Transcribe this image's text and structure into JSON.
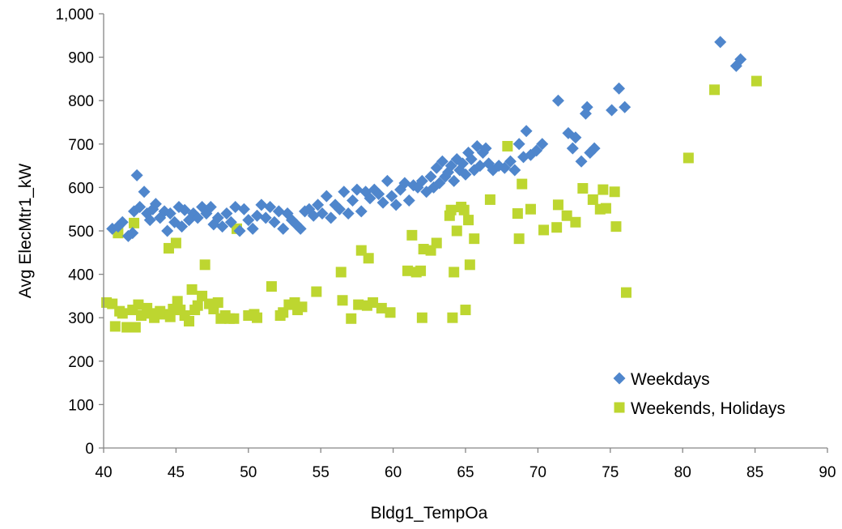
{
  "chart_data": {
    "type": "scatter",
    "title": "",
    "xlabel": "Bldg1_TempOa",
    "ylabel": "Avg ElecMtr1_kW",
    "xlim": [
      40,
      90
    ],
    "ylim": [
      0,
      1000
    ],
    "x_ticks": [
      "40",
      "45",
      "50",
      "55",
      "60",
      "65",
      "70",
      "75",
      "80",
      "85",
      "90"
    ],
    "y_ticks": [
      "0",
      "100",
      "200",
      "300",
      "400",
      "500",
      "600",
      "700",
      "800",
      "900",
      "1,000"
    ],
    "grid": false,
    "legend_position": "bottom-right",
    "series": [
      {
        "name": "Weekdays",
        "marker": "diamond",
        "color": "#4F86CC",
        "points": [
          [
            40.6,
            505
          ],
          [
            41.0,
            510
          ],
          [
            41.3,
            520
          ],
          [
            41.7,
            488
          ],
          [
            42.0,
            495
          ],
          [
            42.1,
            545
          ],
          [
            42.3,
            628
          ],
          [
            42.5,
            555
          ],
          [
            42.8,
            590
          ],
          [
            43.0,
            540
          ],
          [
            43.2,
            525
          ],
          [
            43.4,
            550
          ],
          [
            43.6,
            562
          ],
          [
            43.9,
            530
          ],
          [
            44.2,
            545
          ],
          [
            44.4,
            500
          ],
          [
            44.6,
            540
          ],
          [
            44.9,
            520
          ],
          [
            45.2,
            555
          ],
          [
            45.4,
            510
          ],
          [
            45.6,
            548
          ],
          [
            45.9,
            525
          ],
          [
            46.2,
            540
          ],
          [
            46.5,
            530
          ],
          [
            46.8,
            555
          ],
          [
            47.1,
            540
          ],
          [
            47.4,
            555
          ],
          [
            47.6,
            515
          ],
          [
            47.9,
            530
          ],
          [
            48.2,
            510
          ],
          [
            48.5,
            540
          ],
          [
            48.8,
            520
          ],
          [
            49.1,
            555
          ],
          [
            49.4,
            500
          ],
          [
            49.7,
            550
          ],
          [
            50.0,
            525
          ],
          [
            50.3,
            505
          ],
          [
            50.6,
            535
          ],
          [
            50.9,
            560
          ],
          [
            51.2,
            530
          ],
          [
            51.5,
            555
          ],
          [
            51.8,
            520
          ],
          [
            52.1,
            545
          ],
          [
            52.4,
            505
          ],
          [
            52.7,
            540
          ],
          [
            53.0,
            525
          ],
          [
            53.3,
            515
          ],
          [
            53.6,
            505
          ],
          [
            53.9,
            545
          ],
          [
            54.2,
            550
          ],
          [
            54.5,
            535
          ],
          [
            54.8,
            560
          ],
          [
            55.1,
            540
          ],
          [
            55.4,
            580
          ],
          [
            55.7,
            530
          ],
          [
            56.0,
            560
          ],
          [
            56.3,
            550
          ],
          [
            56.6,
            590
          ],
          [
            56.9,
            540
          ],
          [
            57.2,
            570
          ],
          [
            57.5,
            595
          ],
          [
            57.8,
            545
          ],
          [
            58.1,
            590
          ],
          [
            58.4,
            575
          ],
          [
            58.7,
            595
          ],
          [
            59.0,
            585
          ],
          [
            59.3,
            565
          ],
          [
            59.6,
            615
          ],
          [
            59.9,
            580
          ],
          [
            60.2,
            560
          ],
          [
            60.5,
            595
          ],
          [
            60.8,
            610
          ],
          [
            61.1,
            570
          ],
          [
            61.4,
            605
          ],
          [
            61.7,
            600
          ],
          [
            62.0,
            615
          ],
          [
            62.3,
            590
          ],
          [
            62.6,
            625
          ],
          [
            62.8,
            600
          ],
          [
            63.0,
            645
          ],
          [
            63.2,
            610
          ],
          [
            63.4,
            660
          ],
          [
            63.6,
            625
          ],
          [
            63.8,
            635
          ],
          [
            64.0,
            650
          ],
          [
            64.2,
            615
          ],
          [
            64.4,
            665
          ],
          [
            64.6,
            640
          ],
          [
            64.8,
            655
          ],
          [
            65.0,
            630
          ],
          [
            65.2,
            680
          ],
          [
            65.4,
            665
          ],
          [
            65.6,
            640
          ],
          [
            65.8,
            695
          ],
          [
            66.0,
            650
          ],
          [
            66.2,
            680
          ],
          [
            66.4,
            690
          ],
          [
            66.6,
            655
          ],
          [
            66.9,
            640
          ],
          [
            67.3,
            650
          ],
          [
            67.7,
            645
          ],
          [
            68.1,
            660
          ],
          [
            68.4,
            640
          ],
          [
            68.7,
            700
          ],
          [
            69.0,
            670
          ],
          [
            69.2,
            730
          ],
          [
            69.5,
            675
          ],
          [
            69.9,
            685
          ],
          [
            70.3,
            700
          ],
          [
            71.4,
            800
          ],
          [
            72.1,
            725
          ],
          [
            72.4,
            690
          ],
          [
            72.6,
            715
          ],
          [
            73.0,
            660
          ],
          [
            73.3,
            770
          ],
          [
            73.4,
            785
          ],
          [
            73.6,
            680
          ],
          [
            73.9,
            690
          ],
          [
            75.1,
            778
          ],
          [
            75.6,
            828
          ],
          [
            76.0,
            785
          ],
          [
            82.6,
            935
          ],
          [
            83.7,
            880
          ],
          [
            84.0,
            895
          ]
        ]
      },
      {
        "name": "Weekends, Holidays",
        "marker": "square",
        "color": "#BDD630",
        "points": [
          [
            40.2,
            335
          ],
          [
            40.6,
            332
          ],
          [
            40.8,
            280
          ],
          [
            41.0,
            495
          ],
          [
            41.1,
            315
          ],
          [
            41.3,
            310
          ],
          [
            41.6,
            278
          ],
          [
            42.0,
            318
          ],
          [
            42.1,
            518
          ],
          [
            42.2,
            278
          ],
          [
            42.4,
            330
          ],
          [
            42.6,
            305
          ],
          [
            43.0,
            322
          ],
          [
            43.3,
            310
          ],
          [
            43.5,
            300
          ],
          [
            43.9,
            315
          ],
          [
            44.2,
            308
          ],
          [
            44.5,
            460
          ],
          [
            44.6,
            302
          ],
          [
            44.8,
            320
          ],
          [
            45.0,
            472
          ],
          [
            45.1,
            338
          ],
          [
            45.3,
            318
          ],
          [
            45.6,
            305
          ],
          [
            45.9,
            292
          ],
          [
            46.1,
            365
          ],
          [
            46.3,
            318
          ],
          [
            46.5,
            328
          ],
          [
            46.8,
            350
          ],
          [
            47.0,
            422
          ],
          [
            47.3,
            332
          ],
          [
            47.6,
            320
          ],
          [
            47.9,
            335
          ],
          [
            48.1,
            298
          ],
          [
            48.4,
            305
          ],
          [
            48.7,
            298
          ],
          [
            49.0,
            298
          ],
          [
            49.2,
            505
          ],
          [
            50.0,
            305
          ],
          [
            50.4,
            308
          ],
          [
            50.6,
            300
          ],
          [
            51.6,
            372
          ],
          [
            52.2,
            305
          ],
          [
            52.4,
            312
          ],
          [
            52.8,
            330
          ],
          [
            53.2,
            335
          ],
          [
            53.4,
            318
          ],
          [
            53.7,
            325
          ],
          [
            54.7,
            360
          ],
          [
            56.4,
            405
          ],
          [
            56.5,
            340
          ],
          [
            57.1,
            298
          ],
          [
            57.6,
            330
          ],
          [
            57.8,
            455
          ],
          [
            58.2,
            328
          ],
          [
            58.3,
            437
          ],
          [
            58.6,
            335
          ],
          [
            59.2,
            322
          ],
          [
            59.8,
            312
          ],
          [
            61.0,
            408
          ],
          [
            61.3,
            490
          ],
          [
            61.6,
            405
          ],
          [
            61.9,
            408
          ],
          [
            62.0,
            300
          ],
          [
            62.1,
            458
          ],
          [
            62.6,
            455
          ],
          [
            63.0,
            472
          ],
          [
            63.9,
            535
          ],
          [
            64.0,
            548
          ],
          [
            64.1,
            300
          ],
          [
            64.2,
            405
          ],
          [
            64.4,
            500
          ],
          [
            64.7,
            555
          ],
          [
            64.9,
            548
          ],
          [
            65.0,
            318
          ],
          [
            65.2,
            525
          ],
          [
            65.3,
            422
          ],
          [
            65.6,
            482
          ],
          [
            66.7,
            572
          ],
          [
            67.9,
            695
          ],
          [
            68.6,
            540
          ],
          [
            68.7,
            482
          ],
          [
            68.9,
            608
          ],
          [
            69.5,
            550
          ],
          [
            70.4,
            502
          ],
          [
            71.3,
            508
          ],
          [
            71.4,
            560
          ],
          [
            72.0,
            535
          ],
          [
            72.6,
            520
          ],
          [
            73.1,
            598
          ],
          [
            73.8,
            572
          ],
          [
            74.3,
            550
          ],
          [
            74.5,
            595
          ],
          [
            74.7,
            552
          ],
          [
            75.3,
            590
          ],
          [
            75.4,
            510
          ],
          [
            76.1,
            358
          ],
          [
            80.4,
            668
          ],
          [
            82.2,
            825
          ],
          [
            85.1,
            845
          ]
        ]
      }
    ]
  }
}
